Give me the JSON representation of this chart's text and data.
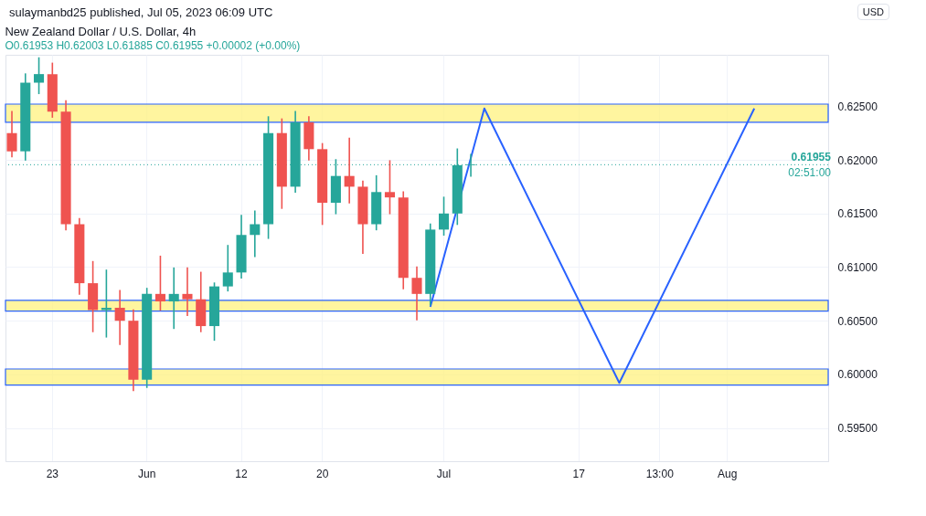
{
  "chart_data": {
    "type": "candlestick",
    "title": "New Zealand Dollar / U.S. Dollar, 4h",
    "subtitle": "O0.61953 H0.62003 L0.61885 C0.61955 +0.00002 (+0.00%)",
    "annotations": [
      "sulaymanbd25 published, Jul 05, 2023 06:09 UTC",
      "USD",
      "02:51:00"
    ],
    "categories": [
      null,
      null,
      null,
      "23",
      null,
      null,
      null,
      null,
      null,
      null,
      "Jun",
      null,
      null,
      null,
      null,
      null,
      null,
      "12",
      null,
      null,
      null,
      null,
      null,
      "20",
      null,
      null,
      null,
      null,
      null,
      null,
      null,
      null,
      "Jul",
      null,
      null,
      null,
      null,
      null,
      null,
      null,
      null,
      null,
      "17",
      null,
      null,
      null,
      null,
      null,
      "13:00",
      null,
      null,
      null,
      null,
      "Aug",
      null,
      null,
      null,
      null,
      null,
      null,
      null
    ],
    "ohlc": [
      [
        0.6225,
        0.6245,
        0.6203,
        0.6208
      ],
      [
        0.6208,
        0.628,
        0.62,
        0.6272
      ],
      [
        0.6272,
        0.6295,
        0.6262,
        0.628
      ],
      [
        0.628,
        0.629,
        0.624,
        0.6245
      ],
      [
        0.6245,
        0.6255,
        0.6135,
        0.614
      ],
      [
        0.614,
        0.6145,
        0.6075,
        0.6085
      ],
      [
        0.6085,
        0.6105,
        0.604,
        0.606
      ],
      [
        0.606,
        0.6097,
        0.6035,
        0.6062
      ],
      [
        0.6062,
        0.6078,
        0.6028,
        0.605
      ],
      [
        0.605,
        0.606,
        0.5985,
        0.5995
      ],
      [
        0.5995,
        0.608,
        0.5988,
        0.6075
      ],
      [
        0.6075,
        0.611,
        0.606,
        0.6068
      ],
      [
        0.6068,
        0.6099,
        0.6043,
        0.6075
      ],
      [
        0.6075,
        0.6099,
        0.6055,
        0.607
      ],
      [
        0.607,
        0.6095,
        0.604,
        0.6045
      ],
      [
        0.6045,
        0.6085,
        0.6032,
        0.6082
      ],
      [
        0.6082,
        0.612,
        0.6078,
        0.6095
      ],
      [
        0.6095,
        0.6148,
        0.609,
        0.613
      ],
      [
        0.613,
        0.6152,
        0.611,
        0.614
      ],
      [
        0.614,
        0.624,
        0.6127,
        0.6225
      ],
      [
        0.6225,
        0.6238,
        0.6155,
        0.6175
      ],
      [
        0.6175,
        0.6245,
        0.617,
        0.6235
      ],
      [
        0.6235,
        0.624,
        0.62,
        0.621
      ],
      [
        0.621,
        0.6215,
        0.614,
        0.616
      ],
      [
        0.616,
        0.62,
        0.615,
        0.6185
      ],
      [
        0.6185,
        0.622,
        0.616,
        0.6175
      ],
      [
        0.6175,
        0.618,
        0.6113,
        0.614
      ],
      [
        0.614,
        0.6185,
        0.6135,
        0.617
      ],
      [
        0.617,
        0.6199,
        0.615,
        0.6165
      ],
      [
        0.6165,
        0.617,
        0.608,
        0.609
      ],
      [
        0.609,
        0.61,
        0.6051,
        0.6075
      ],
      [
        0.6075,
        0.614,
        0.6065,
        0.6135
      ],
      [
        0.6135,
        0.6165,
        0.613,
        0.615
      ],
      [
        0.615,
        0.621,
        0.614,
        0.6195
      ],
      [
        0.6195,
        0.6205,
        0.6185,
        0.61955
      ],
      null,
      null,
      null,
      null,
      null,
      null,
      null,
      null,
      null,
      null,
      null,
      null,
      null,
      null,
      null,
      null,
      null,
      null,
      null,
      null,
      null,
      null,
      null,
      null,
      null,
      null
    ],
    "colors": [
      "#ef5350",
      "#26a69a",
      "#26a69a",
      "#ef5350",
      "#ef5350",
      "#ef5350",
      "#ef5350",
      "#26a69a",
      "#ef5350",
      "#ef5350",
      "#26a69a",
      "#ef5350",
      "#26a69a",
      "#ef5350",
      "#ef5350",
      "#26a69a",
      "#26a69a",
      "#26a69a",
      "#26a69a",
      "#26a69a",
      "#ef5350",
      "#26a69a",
      "#ef5350",
      "#ef5350",
      "#26a69a",
      "#ef5350",
      "#ef5350",
      "#26a69a",
      "#ef5350",
      "#ef5350",
      "#ef5350",
      "#26a69a",
      "#26a69a",
      "#26a69a",
      "#26a69a",
      null,
      null,
      null,
      null,
      null,
      null,
      null,
      null,
      null,
      null,
      null,
      null,
      null,
      null,
      null,
      null,
      null,
      null,
      null,
      null,
      null,
      null,
      null,
      null,
      null,
      null
    ],
    "series": [
      {
        "type": "line",
        "color": "#2962ff",
        "values": [
          null,
          null,
          null,
          null,
          null,
          null,
          null,
          null,
          null,
          null,
          null,
          null,
          null,
          null,
          null,
          null,
          null,
          null,
          null,
          null,
          null,
          null,
          null,
          null,
          null,
          null,
          null,
          null,
          null,
          null,
          null,
          0.6063,
          null,
          null,
          null,
          0.6248,
          null,
          null,
          null,
          null,
          null,
          null,
          null,
          null,
          null,
          0.5992,
          null,
          null,
          null,
          null,
          null,
          null,
          null,
          null,
          null,
          0.6248,
          null,
          null,
          null,
          null,
          null
        ]
      }
    ],
    "bands": [
      {
        "axis": "y",
        "from": 0.6235,
        "to": 0.6252,
        "color": "#fff176"
      },
      {
        "axis": "y",
        "from": 0.6059,
        "to": 0.6069,
        "color": "#fff176"
      },
      {
        "axis": "y",
        "from": 0.599,
        "to": 0.6005,
        "color": "#fff176"
      }
    ],
    "ref_lines": [
      {
        "axis": "y",
        "value": 0.61955,
        "label": "0.61955",
        "color": "#26a69a",
        "line_style": "dotted"
      }
    ],
    "ylim": [
      0.5919,
      0.6298
    ],
    "yticks": [
      {
        "value": 0.595,
        "label": "0.59500"
      },
      {
        "value": 0.6,
        "label": "0.60000"
      },
      {
        "value": 0.605,
        "label": "0.60500"
      },
      {
        "value": 0.61,
        "label": "0.61000"
      },
      {
        "value": 0.615,
        "label": "0.61500"
      },
      {
        "value": 0.62,
        "label": "0.62000"
      },
      {
        "value": 0.625,
        "label": "0.62500"
      }
    ],
    "grid": true
  }
}
